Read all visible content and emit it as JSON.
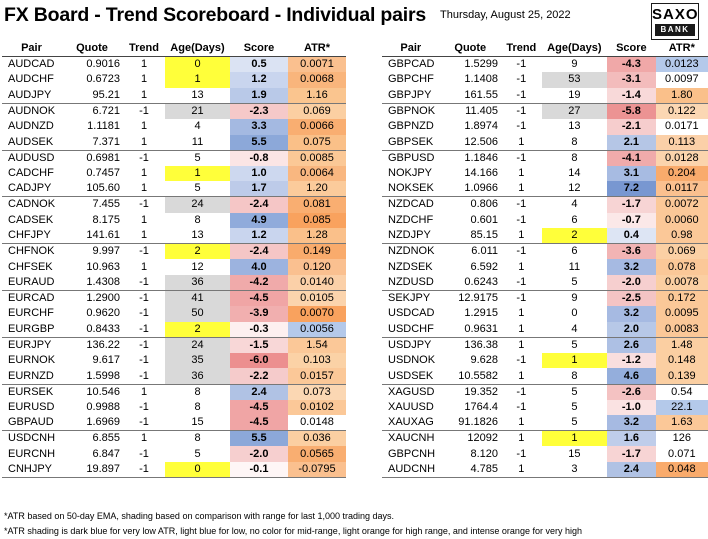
{
  "header": {
    "title": "FX Board - Trend Scoreboard - Individual pairs",
    "date": "Thursday, August 25, 2022",
    "logo_top": "SAXO",
    "logo_bottom": "BANK"
  },
  "columns": [
    "Pair",
    "Quote",
    "Trend",
    "Age(Days)",
    "Score",
    "ATR*"
  ],
  "left": [
    [
      {
        "pair": "AUDCAD",
        "quote": "0.9016",
        "trend": "1",
        "age": "0",
        "score": "0.5",
        "atr": "0.0071",
        "ageBg": "y",
        "scoreBg": "#dbe3f3",
        "atrBg": "#fac08f"
      },
      {
        "pair": "AUDCHF",
        "quote": "0.6723",
        "trend": "1",
        "age": "1",
        "score": "1.2",
        "atr": "0.0068",
        "ageBg": "y",
        "scoreBg": "#c9d5ee",
        "atrBg": "#f9b57c"
      },
      {
        "pair": "AUDJPY",
        "quote": "95.21",
        "trend": "1",
        "age": "13",
        "score": "1.9",
        "atr": "1.16",
        "ageBg": "",
        "scoreBg": "#b9c9e8",
        "atrBg": "#fac58f"
      }
    ],
    [
      {
        "pair": "AUDNOK",
        "quote": "6.721",
        "trend": "-1",
        "age": "21",
        "score": "-2.3",
        "atr": "0.069",
        "ageBg": "g",
        "scoreBg": "#f5c9c9",
        "atrBg": "#fbcfa2"
      },
      {
        "pair": "AUDNZD",
        "quote": "1.1181",
        "trend": "1",
        "age": "4",
        "score": "3.3",
        "atr": "0.0066",
        "ageBg": "",
        "scoreBg": "#a4b9e1",
        "atrBg": "#f9ae71"
      },
      {
        "pair": "AUDSEK",
        "quote": "7.371",
        "trend": "1",
        "age": "11",
        "score": "5.5",
        "atr": "0.075",
        "ageBg": "",
        "scoreBg": "#8ca8d9",
        "atrBg": "#fac088"
      }
    ],
    [
      {
        "pair": "AUDUSD",
        "quote": "0.6981",
        "trend": "-1",
        "age": "5",
        "score": "-0.8",
        "atr": "0.0085",
        "ageBg": "",
        "scoreBg": "#fbe5e5",
        "atrBg": "#fbc896"
      },
      {
        "pair": "CADCHF",
        "quote": "0.7457",
        "trend": "1",
        "age": "1",
        "score": "1.0",
        "atr": "0.0064",
        "ageBg": "y",
        "scoreBg": "#cdd8ef",
        "atrBg": "#f9b780"
      },
      {
        "pair": "CADJPY",
        "quote": "105.60",
        "trend": "1",
        "age": "5",
        "score": "1.7",
        "atr": "1.20",
        "ageBg": "",
        "scoreBg": "#bdcbe9",
        "atrBg": "#fbcb9b"
      }
    ],
    [
      {
        "pair": "CADNOK",
        "quote": "7.455",
        "trend": "-1",
        "age": "24",
        "score": "-2.4",
        "atr": "0.081",
        "ageBg": "g",
        "scoreBg": "#f5c6c6",
        "atrBg": "#f9ae71"
      },
      {
        "pair": "CADSEK",
        "quote": "8.175",
        "trend": "1",
        "age": "8",
        "score": "4.9",
        "atr": "0.085",
        "ageBg": "",
        "scoreBg": "#90abdb",
        "atrBg": "#f9a25e"
      },
      {
        "pair": "CHFJPY",
        "quote": "141.61",
        "trend": "1",
        "age": "13",
        "score": "1.2",
        "atr": "1.28",
        "ageBg": "",
        "scoreBg": "#c9d5ee",
        "atrBg": "#fac08a"
      }
    ],
    [
      {
        "pair": "CHFNOK",
        "quote": "9.997",
        "trend": "-1",
        "age": "2",
        "score": "-2.4",
        "atr": "0.149",
        "ageBg": "y",
        "scoreBg": "#f5c6c6",
        "atrBg": "#f9ab6c"
      },
      {
        "pair": "CHFSEK",
        "quote": "10.963",
        "trend": "1",
        "age": "12",
        "score": "4.0",
        "atr": "0.120",
        "ageBg": "",
        "scoreBg": "#9cb3df",
        "atrBg": "#fac090"
      },
      {
        "pair": "EURAUD",
        "quote": "1.4308",
        "trend": "-1",
        "age": "36",
        "score": "-4.2",
        "atr": "0.0140",
        "ageBg": "g",
        "scoreBg": "#f0aaaa",
        "atrBg": "#fbd0a8"
      }
    ],
    [
      {
        "pair": "EURCAD",
        "quote": "1.2900",
        "trend": "-1",
        "age": "41",
        "score": "-4.5",
        "atr": "0.0105",
        "ageBg": "g",
        "scoreBg": "#f0a5a5",
        "atrBg": "#fbd4ad"
      },
      {
        "pair": "EURCHF",
        "quote": "0.9620",
        "trend": "-1",
        "age": "50",
        "score": "-3.9",
        "atr": "0.0070",
        "ageBg": "g",
        "scoreBg": "#f1afaf",
        "atrBg": "#f9a25e"
      },
      {
        "pair": "EURGBP",
        "quote": "0.8433",
        "trend": "-1",
        "age": "2",
        "score": "-0.3",
        "atr": "0.0056",
        "ageBg": "y",
        "scoreBg": "#fdf0f0",
        "atrBg": "#b4c9ea"
      }
    ],
    [
      {
        "pair": "EURJPY",
        "quote": "136.22",
        "trend": "-1",
        "age": "24",
        "score": "-1.5",
        "atr": "1.54",
        "ageBg": "g",
        "scoreBg": "#f8d7d7",
        "atrBg": "#fbc898"
      },
      {
        "pair": "EURNOK",
        "quote": "9.617",
        "trend": "-1",
        "age": "35",
        "score": "-6.0",
        "atr": "0.103",
        "ageBg": "g",
        "scoreBg": "#ec8f8f",
        "atrBg": "#fbd2a6"
      },
      {
        "pair": "EURNZD",
        "quote": "1.5998",
        "trend": "-1",
        "age": "36",
        "score": "-2.2",
        "atr": "0.0157",
        "ageBg": "g",
        "scoreBg": "#f5cbcb",
        "atrBg": "#fbc898"
      }
    ],
    [
      {
        "pair": "EURSEK",
        "quote": "10.546",
        "trend": "1",
        "age": "8",
        "score": "2.4",
        "atr": "0.073",
        "ageBg": "",
        "scoreBg": "#b0c2e4",
        "atrBg": "#fbd7b3"
      },
      {
        "pair": "EURUSD",
        "quote": "0.9988",
        "trend": "-1",
        "age": "8",
        "score": "-4.5",
        "atr": "0.0102",
        "ageBg": "",
        "scoreBg": "#f0a5a5",
        "atrBg": "#fbc898"
      },
      {
        "pair": "GBPAUD",
        "quote": "1.6969",
        "trend": "-1",
        "age": "15",
        "score": "-4.5",
        "atr": "0.0148",
        "ageBg": "",
        "scoreBg": "#f0a5a5",
        "atrBg": ""
      }
    ],
    [
      {
        "pair": "USDCNH",
        "quote": "6.855",
        "trend": "1",
        "age": "8",
        "score": "5.5",
        "atr": "0.036",
        "ageBg": "",
        "scoreBg": "#8ca8d9",
        "atrBg": "#fbcfa2"
      },
      {
        "pair": "EURCNH",
        "quote": "6.847",
        "trend": "-1",
        "age": "5",
        "score": "-2.0",
        "atr": "0.0565",
        "ageBg": "",
        "scoreBg": "#f6cfcf",
        "atrBg": "#f9ae71"
      },
      {
        "pair": "CNHJPY",
        "quote": "19.897",
        "trend": "-1",
        "age": "0",
        "score": "-0.1",
        "atr": "-0.0795",
        "ageBg": "y",
        "scoreBg": "#fef6f6",
        "atrBg": "#fac08f"
      }
    ]
  ],
  "right": [
    [
      {
        "pair": "GBPCAD",
        "quote": "1.5299",
        "trend": "-1",
        "age": "9",
        "score": "-4.3",
        "atr": "0.0123",
        "ageBg": "",
        "scoreBg": "#f0a8a8",
        "atrBg": "#b4c9ea"
      },
      {
        "pair": "GBPCHF",
        "quote": "1.1408",
        "trend": "-1",
        "age": "53",
        "score": "-3.1",
        "atr": "0.0097",
        "ageBg": "g",
        "scoreBg": "#f3bcbc",
        "atrBg": ""
      },
      {
        "pair": "GBPJPY",
        "quote": "161.55",
        "trend": "-1",
        "age": "19",
        "score": "-1.4",
        "atr": "1.80",
        "ageBg": "",
        "scoreBg": "#f8d9d9",
        "atrBg": "#fac08a"
      }
    ],
    [
      {
        "pair": "GBPNOK",
        "quote": "11.405",
        "trend": "-1",
        "age": "27",
        "score": "-5.8",
        "atr": "0.122",
        "ageBg": "g",
        "scoreBg": "#ec9393",
        "atrBg": "#fbd7b3"
      },
      {
        "pair": "GBPNZD",
        "quote": "1.8974",
        "trend": "-1",
        "age": "13",
        "score": "-2.1",
        "atr": "0.0171",
        "ageBg": "",
        "scoreBg": "#f6cdcd",
        "atrBg": ""
      },
      {
        "pair": "GBPSEK",
        "quote": "12.506",
        "trend": "1",
        "age": "8",
        "score": "2.1",
        "atr": "0.113",
        "ageBg": "",
        "scoreBg": "#b5c6e6",
        "atrBg": "#fbd0a8"
      }
    ],
    [
      {
        "pair": "GBPUSD",
        "quote": "1.1846",
        "trend": "-1",
        "age": "8",
        "score": "-4.1",
        "atr": "0.0128",
        "ageBg": "",
        "scoreBg": "#f0abab",
        "atrBg": "#fbd4ad"
      },
      {
        "pair": "NOKJPY",
        "quote": "14.166",
        "trend": "1",
        "age": "14",
        "score": "3.1",
        "atr": "0.204",
        "ageBg": "",
        "scoreBg": "#a7bbe2",
        "atrBg": "#f9ab6c"
      },
      {
        "pair": "NOKSEK",
        "quote": "1.0966",
        "trend": "1",
        "age": "12",
        "score": "7.2",
        "atr": "0.0117",
        "ageBg": "",
        "scoreBg": "#7897d1",
        "atrBg": "#fac08f"
      }
    ],
    [
      {
        "pair": "NZDCAD",
        "quote": "0.806",
        "trend": "-1",
        "age": "4",
        "score": "-1.7",
        "atr": "0.0072",
        "ageBg": "",
        "scoreBg": "#f7d4d4",
        "atrBg": "#fbc898"
      },
      {
        "pair": "NZDCHF",
        "quote": "0.601",
        "trend": "-1",
        "age": "6",
        "score": "-0.7",
        "atr": "0.0060",
        "ageBg": "",
        "scoreBg": "#fbe8e8",
        "atrBg": "#fbc898"
      },
      {
        "pair": "NZDJPY",
        "quote": "85.15",
        "trend": "1",
        "age": "2",
        "score": "0.4",
        "atr": "0.98",
        "ageBg": "y",
        "scoreBg": "#dde5f4",
        "atrBg": "#fbc898"
      }
    ],
    [
      {
        "pair": "NZDNOK",
        "quote": "6.011",
        "trend": "-1",
        "age": "6",
        "score": "-3.6",
        "atr": "0.069",
        "ageBg": "",
        "scoreBg": "#f2b4b4",
        "atrBg": "#fbd0a4"
      },
      {
        "pair": "NZDSEK",
        "quote": "6.592",
        "trend": "1",
        "age": "11",
        "score": "3.2",
        "atr": "0.078",
        "ageBg": "",
        "scoreBg": "#a6bae2",
        "atrBg": "#fbc898"
      },
      {
        "pair": "NZDUSD",
        "quote": "0.6243",
        "trend": "-1",
        "age": "5",
        "score": "-2.0",
        "atr": "0.0078",
        "ageBg": "",
        "scoreBg": "#f6cfcf",
        "atrBg": "#fbcfa2"
      }
    ],
    [
      {
        "pair": "SEKJPY",
        "quote": "12.9175",
        "trend": "-1",
        "age": "9",
        "score": "-2.5",
        "atr": "0.172",
        "ageBg": "",
        "scoreBg": "#f4c4c4",
        "atrBg": "#fbc898"
      },
      {
        "pair": "USDCAD",
        "quote": "1.2915",
        "trend": "1",
        "age": "0",
        "score": "3.2",
        "atr": "0.0095",
        "ageBg": "",
        "scoreBg": "#a6bae2",
        "atrBg": "#fbc898"
      },
      {
        "pair": "USDCHF",
        "quote": "0.9631",
        "trend": "1",
        "age": "4",
        "score": "2.0",
        "atr": "0.0083",
        "ageBg": "",
        "scoreBg": "#b7c8e7",
        "atrBg": "#fbc898"
      }
    ],
    [
      {
        "pair": "USDJPY",
        "quote": "136.38",
        "trend": "1",
        "age": "5",
        "score": "2.6",
        "atr": "1.48",
        "ageBg": "",
        "scoreBg": "#adc0e4",
        "atrBg": "#fbcfa2"
      },
      {
        "pair": "USDNOK",
        "quote": "9.628",
        "trend": "-1",
        "age": "1",
        "score": "-1.2",
        "atr": "0.148",
        "ageBg": "y",
        "scoreBg": "#f9dede",
        "atrBg": "#fbcfa2"
      },
      {
        "pair": "USDSEK",
        "quote": "10.5582",
        "trend": "1",
        "age": "8",
        "score": "4.6",
        "atr": "0.139",
        "ageBg": "",
        "scoreBg": "#94aedc",
        "atrBg": "#fbcfa2"
      }
    ],
    [
      {
        "pair": "XAGUSD",
        "quote": "19.352",
        "trend": "-1",
        "age": "5",
        "score": "-2.6",
        "atr": "0.54",
        "ageBg": "",
        "scoreBg": "#f4c2c2",
        "atrBg": ""
      },
      {
        "pair": "XAUUSD",
        "quote": "1764.4",
        "trend": "-1",
        "age": "5",
        "score": "-1.0",
        "atr": "22.1",
        "ageBg": "",
        "scoreBg": "#fae2e2",
        "atrBg": "#b4c9ea"
      },
      {
        "pair": "XAUXAG",
        "quote": "91.1826",
        "trend": "1",
        "age": "5",
        "score": "3.2",
        "atr": "1.63",
        "ageBg": "",
        "scoreBg": "#a6bae2",
        "atrBg": "#fbc898"
      }
    ],
    [
      {
        "pair": "XAUCNH",
        "quote": "12092",
        "trend": "1",
        "age": "1",
        "score": "1.6",
        "atr": "126",
        "ageBg": "y",
        "scoreBg": "#bfcdea",
        "atrBg": ""
      },
      {
        "pair": "GBPCNH",
        "quote": "8.120",
        "trend": "-1",
        "age": "15",
        "score": "-1.7",
        "atr": "0.071",
        "ageBg": "",
        "scoreBg": "#f7d4d4",
        "atrBg": ""
      },
      {
        "pair": "AUDCNH",
        "quote": "4.785",
        "trend": "1",
        "age": "3",
        "score": "2.4",
        "atr": "0.048",
        "ageBg": "",
        "scoreBg": "#b0c2e4",
        "atrBg": "#f9ab6c"
      }
    ]
  ],
  "footnotes": [
    "*ATR based on 50-day EMA, shading based on comparison with range for last 1,000 trading days.",
    "*ATR shading is dark blue for very low ATR, light blue for low, no color for mid-range, light orange for high range, and intense orange for very high"
  ]
}
